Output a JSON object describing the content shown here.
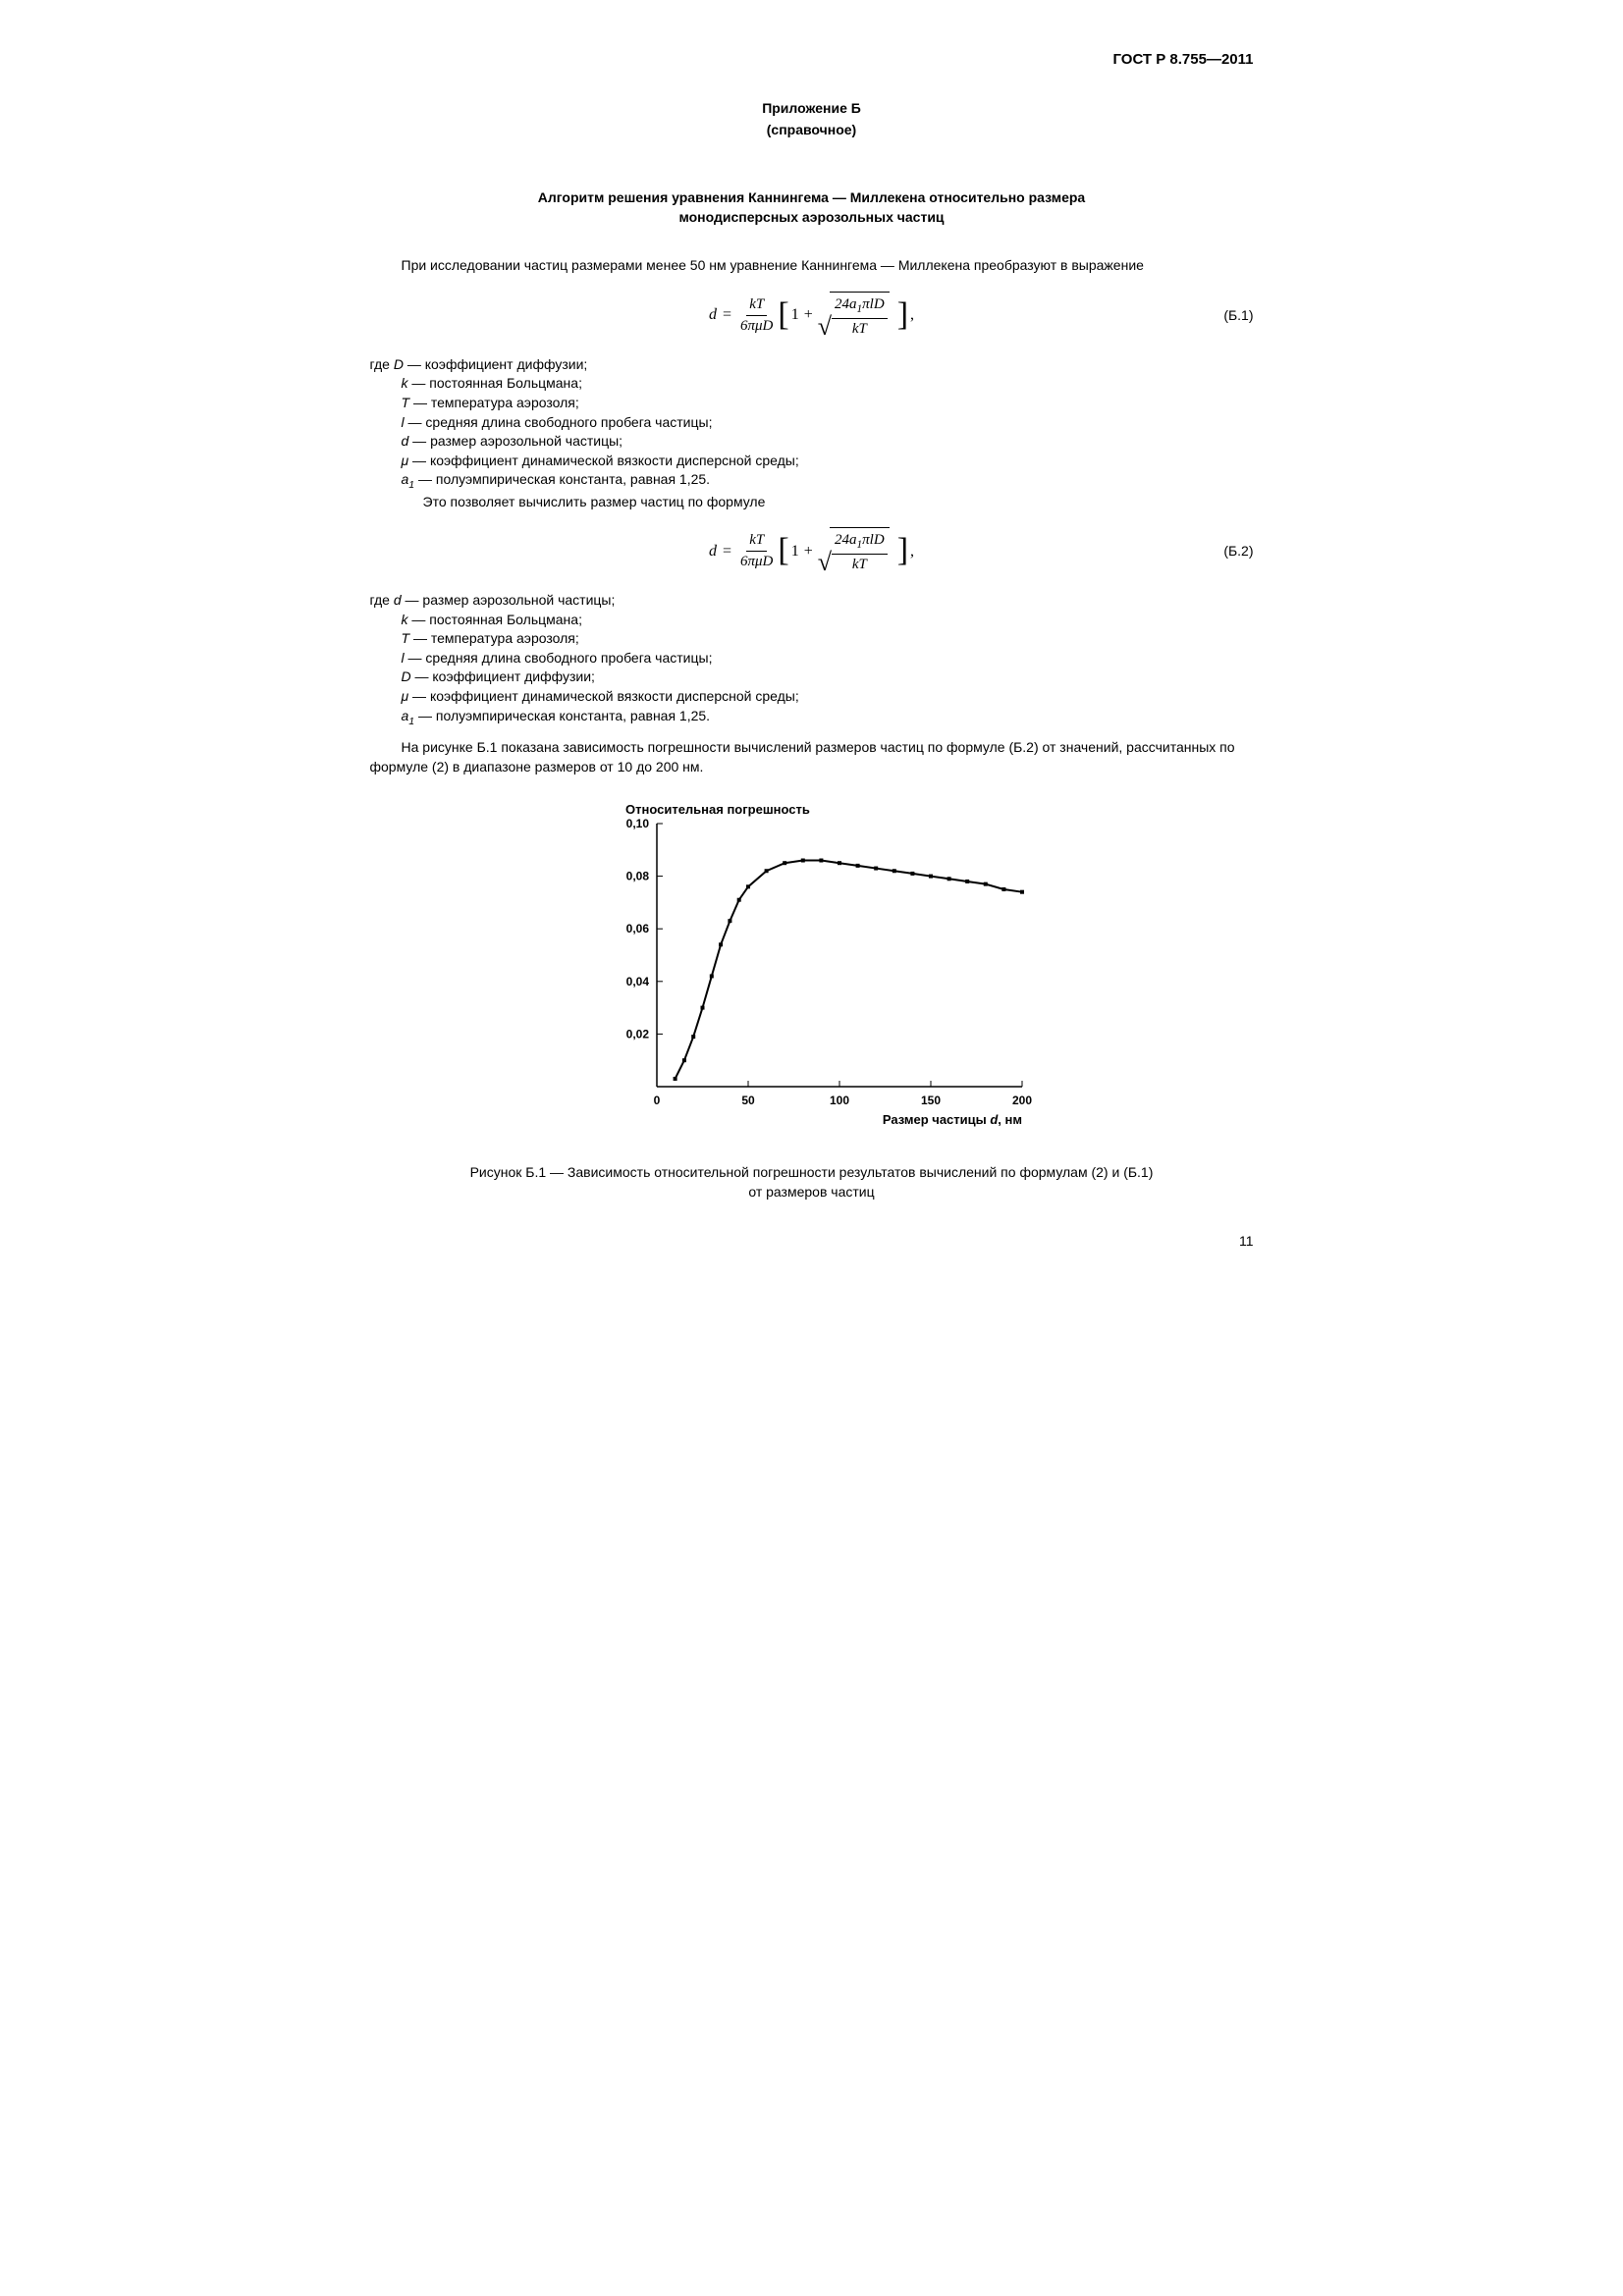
{
  "header": {
    "doc_id": "ГОСТ Р 8.755—2011"
  },
  "appendix": {
    "title": "Приложение Б",
    "subtitle": "(справочное)"
  },
  "section": {
    "title_line1": "Алгоритм решения уравнения Каннингема — Миллекена относительно размера",
    "title_line2": "монодисперсных аэрозольных частиц"
  },
  "para1": "При исследовании частиц размерами менее 50 нм уравнение Каннингема — Миллекена преобразуют в выражение",
  "eq_b1": {
    "number": "(Б.1)"
  },
  "defs1": {
    "intro": "где",
    "items": [
      {
        "sym": "D",
        "text": "коэффициент диффузии;"
      },
      {
        "sym": "k",
        "text": "постоянная Больцмана;"
      },
      {
        "sym": "T",
        "text": "температура аэрозоля;"
      },
      {
        "sym": "l",
        "text": "средняя длина свободного пробега частицы;"
      },
      {
        "sym": "d",
        "text": "размер аэрозольной частицы;"
      },
      {
        "sym": "μ",
        "text": "коэффициент динамической вязкости дисперсной среды;"
      },
      {
        "sym": "a",
        "sub": "1",
        "text": "полуэмпирическая константа, равная 1,25."
      }
    ],
    "after": "Это позволяет вычислить размер частиц по формуле"
  },
  "eq_b2": {
    "number": "(Б.2)"
  },
  "defs2": {
    "intro": "где",
    "items": [
      {
        "sym": "d",
        "text": "размер аэрозольной частицы;"
      },
      {
        "sym": "k",
        "text": "постоянная Больцмана;"
      },
      {
        "sym": "T",
        "text": "температура аэрозоля;"
      },
      {
        "sym": "l",
        "text": "средняя длина свободного пробега частицы;"
      },
      {
        "sym": "D",
        "text": "коэффициент диффузии;"
      },
      {
        "sym": "μ",
        "text": "коэффициент динамической вязкости дисперсной среды;"
      },
      {
        "sym": "a",
        "sub": "1",
        "text": "полуэмпирическая константа, равная 1,25."
      }
    ]
  },
  "para2": "На рисунке Б.1 показана зависимость погрешности вычислений размеров частиц по формуле (Б.2) от значений, рассчитанных по формуле (2) в диапазоне размеров от 10 до 200 нм.",
  "chart": {
    "type": "line",
    "y_title": "Относительная погрешность",
    "x_title": "Размер частицы",
    "x_var": "d",
    "x_unit": ", нм",
    "xlim": [
      0,
      200
    ],
    "ylim": [
      0,
      0.1
    ],
    "xticks": [
      0,
      50,
      100,
      150,
      200
    ],
    "xtick_labels": [
      "0",
      "50",
      "100",
      "150",
      "200"
    ],
    "yticks": [
      0,
      0.02,
      0.04,
      0.06,
      0.08,
      0.1
    ],
    "ytick_labels": [
      "0",
      "0,02",
      "0,04",
      "0,06",
      "0,08",
      "0,10"
    ],
    "line_color": "#000000",
    "marker_color": "#000000",
    "line_width": 2,
    "marker_size": 4,
    "background_color": "#ffffff",
    "tick_inward": true,
    "title_fontsize": 13,
    "label_fontsize": 13,
    "tick_fontsize": 12,
    "data": [
      {
        "x": 10,
        "y": 0.003
      },
      {
        "x": 15,
        "y": 0.01
      },
      {
        "x": 20,
        "y": 0.019
      },
      {
        "x": 25,
        "y": 0.03
      },
      {
        "x": 30,
        "y": 0.042
      },
      {
        "x": 35,
        "y": 0.054
      },
      {
        "x": 40,
        "y": 0.063
      },
      {
        "x": 45,
        "y": 0.071
      },
      {
        "x": 50,
        "y": 0.076
      },
      {
        "x": 60,
        "y": 0.082
      },
      {
        "x": 70,
        "y": 0.085
      },
      {
        "x": 80,
        "y": 0.086
      },
      {
        "x": 90,
        "y": 0.086
      },
      {
        "x": 100,
        "y": 0.085
      },
      {
        "x": 110,
        "y": 0.084
      },
      {
        "x": 120,
        "y": 0.083
      },
      {
        "x": 130,
        "y": 0.082
      },
      {
        "x": 140,
        "y": 0.081
      },
      {
        "x": 150,
        "y": 0.08
      },
      {
        "x": 160,
        "y": 0.079
      },
      {
        "x": 170,
        "y": 0.078
      },
      {
        "x": 180,
        "y": 0.077
      },
      {
        "x": 190,
        "y": 0.075
      },
      {
        "x": 200,
        "y": 0.074
      }
    ]
  },
  "figure_caption": {
    "line1": "Рисунок Б.1 — Зависимость относительной погрешности результатов вычислений по формулам (2) и (Б.1)",
    "line2": "от размеров частиц"
  },
  "page_number": "11"
}
